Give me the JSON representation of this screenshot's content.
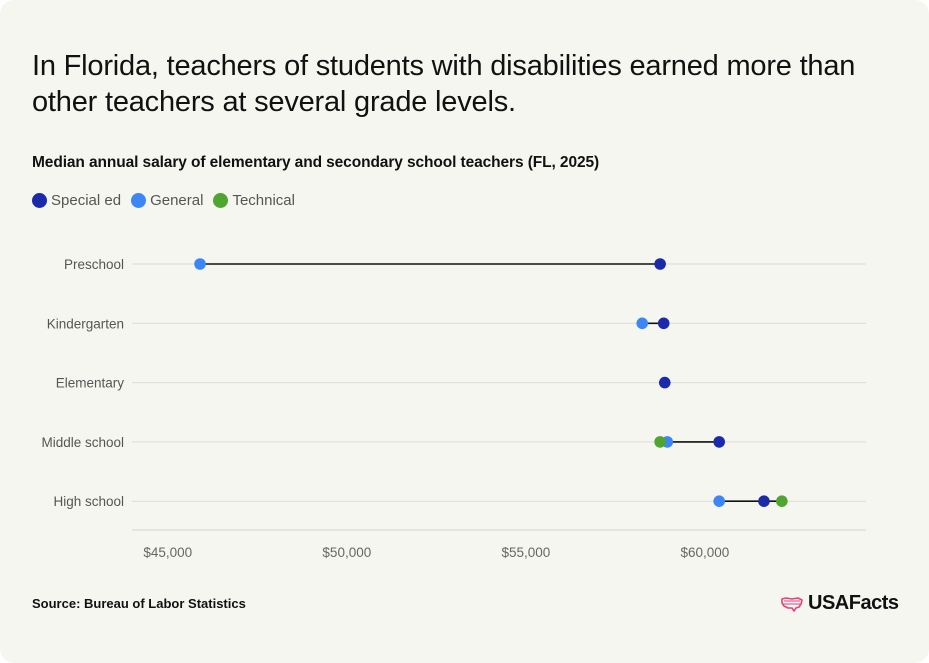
{
  "header": {
    "title": "In Florida, teachers of students with disabilities earned more than other teachers at several grade levels.",
    "subtitle": "Median annual salary of elementary and secondary school teachers (FL, 2025)"
  },
  "legend": [
    {
      "name": "Special ed",
      "color": "#1a2aa8"
    },
    {
      "name": "General",
      "color": "#3d86f5"
    },
    {
      "name": "Technical",
      "color": "#4ea631"
    }
  ],
  "footer": {
    "source": "Source: Bureau of Labor Statistics",
    "logo_text": "USAFacts",
    "logo_icon": "us-map-icon"
  },
  "chart_data": {
    "type": "dumbbell",
    "title": "Median annual salary of elementary and secondary school teachers (FL, 2025)",
    "xlabel": "",
    "ylabel": "",
    "xlim": [
      44000,
      64500
    ],
    "x_ticks": [
      45000,
      50000,
      55000,
      60000
    ],
    "x_tick_labels": [
      "$45,000",
      "$50,000",
      "$55,000",
      "$60,000"
    ],
    "grid": true,
    "legend_position": "top-left",
    "categories": [
      "Preschool",
      "Kindergarten",
      "Elementary",
      "Middle school",
      "High school"
    ],
    "series": [
      {
        "name": "Special ed",
        "color": "#1a2aa8",
        "values": [
          58750,
          58850,
          58880,
          60400,
          61650
        ]
      },
      {
        "name": "General",
        "color": "#3d86f5",
        "values": [
          45900,
          58250,
          null,
          58950,
          60400
        ]
      },
      {
        "name": "Technical",
        "color": "#4ea631",
        "values": [
          null,
          null,
          null,
          58750,
          62150
        ]
      }
    ]
  }
}
